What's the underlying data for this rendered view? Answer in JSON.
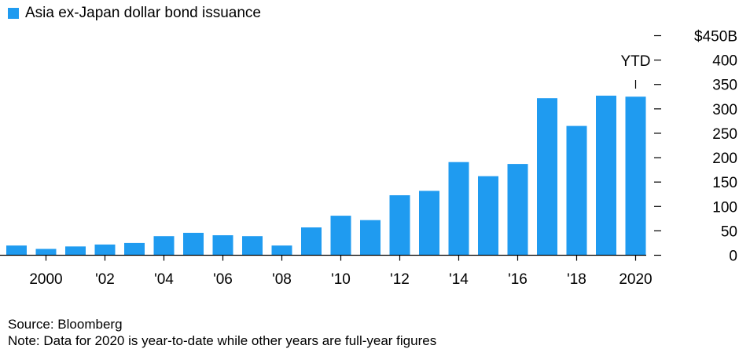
{
  "colors": {
    "bar": "#1f9bf0",
    "axis": "#000000",
    "background": "#ffffff"
  },
  "chart_data": {
    "type": "bar",
    "title": "Asia ex-Japan dollar bond issuance",
    "legend": [
      "Asia ex-Japan dollar bond issuance"
    ],
    "xlabel": "",
    "ylabel": "",
    "years": [
      1999,
      2000,
      2001,
      2002,
      2003,
      2004,
      2005,
      2006,
      2007,
      2008,
      2009,
      2010,
      2011,
      2012,
      2013,
      2014,
      2015,
      2016,
      2017,
      2018,
      2019,
      2020
    ],
    "values": [
      20,
      13,
      18,
      22,
      25,
      39,
      46,
      41,
      39,
      20,
      57,
      81,
      72,
      123,
      132,
      191,
      162,
      187,
      322,
      265,
      327,
      325
    ],
    "x_ticks": [
      {
        "year": 2000,
        "label": "2000"
      },
      {
        "year": 2002,
        "label": "'02"
      },
      {
        "year": 2004,
        "label": "'04"
      },
      {
        "year": 2006,
        "label": "'06"
      },
      {
        "year": 2008,
        "label": "'08"
      },
      {
        "year": 2010,
        "label": "'10"
      },
      {
        "year": 2012,
        "label": "'12"
      },
      {
        "year": 2014,
        "label": "'14"
      },
      {
        "year": 2016,
        "label": "'16"
      },
      {
        "year": 2018,
        "label": "'18"
      },
      {
        "year": 2020,
        "label": "2020"
      }
    ],
    "y_ticks": [
      {
        "value": 450,
        "label": "$450B"
      },
      {
        "value": 400,
        "label": "400"
      },
      {
        "value": 350,
        "label": "350"
      },
      {
        "value": 300,
        "label": "300"
      },
      {
        "value": 250,
        "label": "250"
      },
      {
        "value": 200,
        "label": "200"
      },
      {
        "value": 150,
        "label": "150"
      },
      {
        "value": 100,
        "label": "100"
      },
      {
        "value": 50,
        "label": "50"
      },
      {
        "value": 0,
        "label": "0"
      }
    ],
    "ylim": [
      0,
      450
    ],
    "y_axis_side": "right",
    "grid": false,
    "annotation": {
      "year": 2020,
      "text": "YTD"
    }
  },
  "footer": {
    "source": "Source: Bloomberg",
    "note": "Note: Data for 2020 is year-to-date while other years are full-year figures"
  }
}
